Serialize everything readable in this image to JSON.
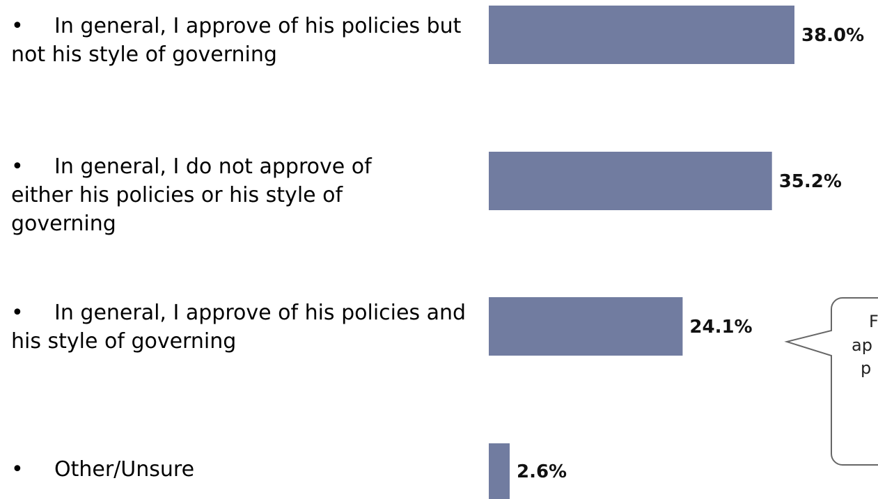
{
  "chart_data": {
    "type": "bar",
    "orientation": "horizontal",
    "categories": [
      "In general, I approve of his policies but not his style of governing",
      "In general, I do not approve of either his policies or his style of governing",
      "In general, I approve of his policies and his style of governing",
      "Other/Unsure"
    ],
    "values": [
      38.0,
      35.2,
      24.1,
      2.6
    ],
    "value_labels": [
      "38.0%",
      "35.2%",
      "24.1%",
      "2.6%"
    ],
    "unit": "%",
    "bar_color": "#717CA0",
    "xlim": [
      0,
      40
    ],
    "grid": false,
    "legend": "none"
  },
  "bullet_glyph": "•",
  "callout": {
    "lines": [
      "F",
      "ap",
      "p"
    ],
    "border_color": "#666666"
  }
}
